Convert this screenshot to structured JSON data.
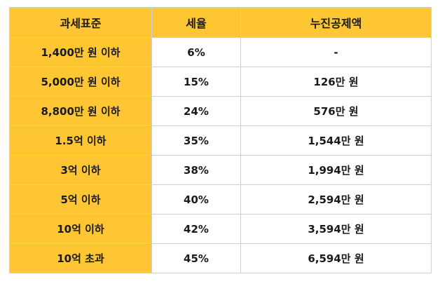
{
  "table": {
    "headers": [
      "과세표준",
      "세율",
      "누진공제액"
    ],
    "rows": [
      [
        "1,400만 원 이하",
        "6%",
        "-"
      ],
      [
        "5,000만 원 이하",
        "15%",
        "126만 원"
      ],
      [
        "8,800만 원 이하",
        "24%",
        "576만 원"
      ],
      [
        "1.5억 이하",
        "35%",
        "1,544만 원"
      ],
      [
        "3억 이하",
        "38%",
        "1,994만 원"
      ],
      [
        "5억 이하",
        "40%",
        "2,594만 원"
      ],
      [
        "10억 이하",
        "42%",
        "3,594만 원"
      ],
      [
        "10억 초과",
        "45%",
        "6,594만 원"
      ]
    ]
  },
  "colors": {
    "header_bg": "#ffc633",
    "bracket_bg": "#ffc633",
    "border": "#cfcfcf",
    "text": "#1a1a1a"
  }
}
